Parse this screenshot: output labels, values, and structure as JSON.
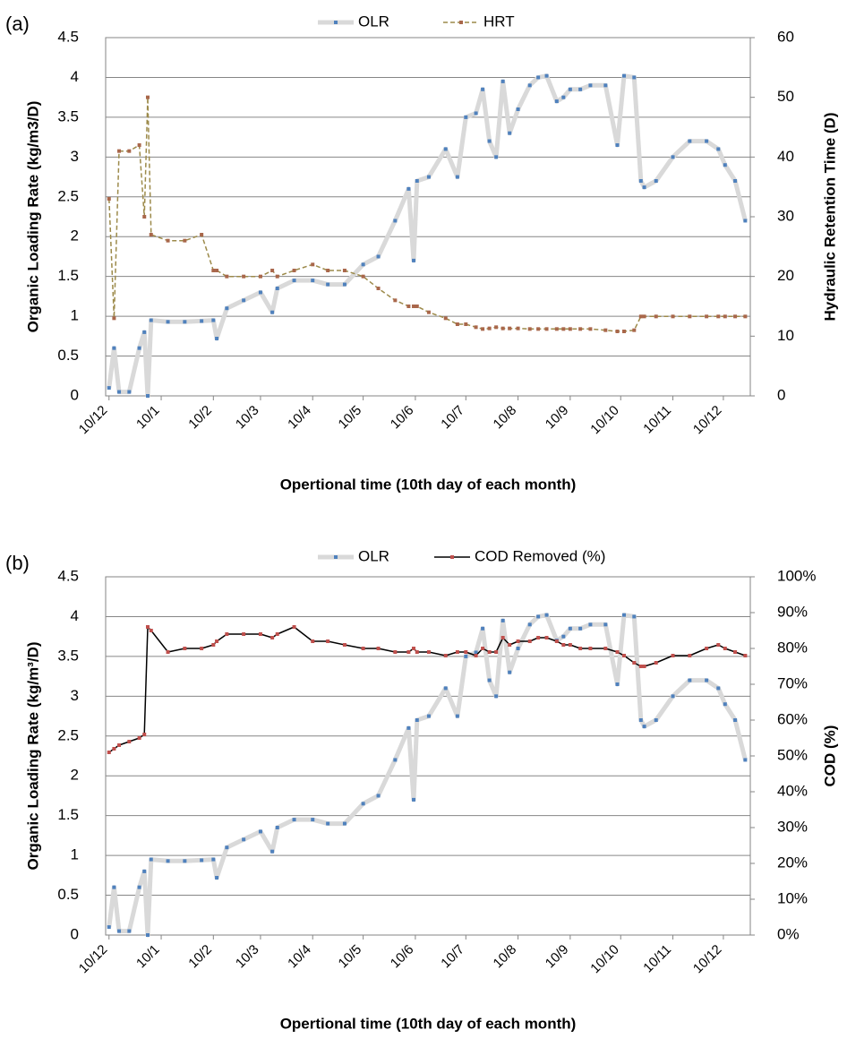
{
  "chart_data": [
    {
      "type": "line",
      "panel_label": "(a)",
      "x_label": "Opertional time (10th day of each month)",
      "y_label": "Organic Loading Rate (kg/m3/D)",
      "y2_label": "Hydraulic Retention Time   (D)",
      "x": [
        0,
        3,
        6,
        12,
        18,
        21,
        23,
        25,
        35,
        45,
        55,
        62,
        64,
        70,
        80,
        90,
        97,
        100,
        110,
        121,
        130,
        140,
        151,
        160,
        170,
        178,
        181,
        183,
        190,
        200,
        207,
        212,
        218,
        222,
        226,
        230,
        234,
        238,
        243,
        250,
        255,
        260,
        266,
        270,
        274,
        280,
        286,
        295,
        302,
        306,
        312,
        316,
        318,
        325,
        335,
        345,
        355,
        362,
        366,
        372,
        378
      ],
      "xlim": [
        -2,
        381
      ],
      "xticks": [
        {
          "value": 0,
          "label": "10/12"
        },
        {
          "value": 31,
          "label": "10/1"
        },
        {
          "value": 62,
          "label": "10/2"
        },
        {
          "value": 90,
          "label": "10/3"
        },
        {
          "value": 121,
          "label": "10/4"
        },
        {
          "value": 151,
          "label": "10/5"
        },
        {
          "value": 182,
          "label": "10/6"
        },
        {
          "value": 212,
          "label": "10/7"
        },
        {
          "value": 243,
          "label": "10/8"
        },
        {
          "value": 274,
          "label": "10/9"
        },
        {
          "value": 304,
          "label": "10/10"
        },
        {
          "value": 335,
          "label": "10/11"
        },
        {
          "value": 365,
          "label": "10/12"
        }
      ],
      "ylim": [
        0,
        4.5
      ],
      "yticks": [
        0,
        0.5,
        1,
        1.5,
        2,
        2.5,
        3,
        3.5,
        4,
        4.5
      ],
      "y2lim": [
        0,
        60
      ],
      "y2ticks": [
        0,
        10,
        20,
        30,
        40,
        50,
        60
      ],
      "grid": true,
      "series": [
        {
          "name": "OLR",
          "color": "#4f81bd",
          "line_color": "#d9d9d9",
          "dashed": false,
          "values": [
            0.1,
            0.6,
            0.05,
            0.05,
            0.6,
            0.8,
            0.0,
            0.95,
            0.93,
            0.93,
            0.94,
            0.95,
            0.72,
            1.1,
            1.2,
            1.3,
            1.05,
            1.35,
            1.45,
            1.45,
            1.4,
            1.4,
            1.65,
            1.75,
            2.2,
            2.6,
            1.7,
            2.7,
            2.75,
            3.1,
            2.75,
            3.5,
            3.55,
            3.85,
            3.2,
            3.0,
            3.95,
            3.3,
            3.6,
            3.9,
            4.0,
            4.02,
            3.7,
            3.75,
            3.85,
            3.85,
            3.9,
            3.9,
            3.15,
            4.02,
            4.0,
            2.7,
            2.62,
            2.7,
            3.0,
            3.2,
            3.2,
            3.1,
            2.9,
            2.7,
            2.2
          ]
        },
        {
          "name": "HRT",
          "color": "#a9674b",
          "line_color": "#9c8a4a",
          "dashed": true,
          "axis": "y2",
          "values": [
            33,
            13,
            41,
            41,
            42,
            30,
            50,
            27,
            26,
            26,
            27,
            21,
            21,
            20,
            20,
            20,
            21,
            20,
            21,
            22,
            21,
            21,
            20,
            18,
            16,
            15,
            15,
            15,
            14,
            13,
            12,
            12,
            11.5,
            11.2,
            11.3,
            11.5,
            11.3,
            11.3,
            11.3,
            11.2,
            11.2,
            11.2,
            11.2,
            11.2,
            11.2,
            11.2,
            11.2,
            11,
            10.8,
            10.8,
            11,
            13.3,
            13.3,
            13.3,
            13.3,
            13.3,
            13.3,
            13.3,
            13.3,
            13.3,
            13.3
          ]
        }
      ]
    },
    {
      "type": "line",
      "panel_label": "(b)",
      "x_label": "Opertional time (10th day of each month)",
      "y_label": "Organic Loading Rate (kg/m³/D)",
      "y2_label": "COD   (%)",
      "x": [
        0,
        3,
        6,
        12,
        18,
        21,
        23,
        25,
        35,
        45,
        55,
        62,
        64,
        70,
        80,
        90,
        97,
        100,
        110,
        121,
        130,
        140,
        151,
        160,
        170,
        178,
        181,
        183,
        190,
        200,
        207,
        212,
        218,
        222,
        226,
        230,
        234,
        238,
        243,
        250,
        255,
        260,
        266,
        270,
        274,
        280,
        286,
        295,
        302,
        306,
        312,
        316,
        318,
        325,
        335,
        345,
        355,
        362,
        366,
        372,
        378
      ],
      "xlim": [
        -2,
        381
      ],
      "xticks": [
        {
          "value": 0,
          "label": "10/12"
        },
        {
          "value": 31,
          "label": "10/1"
        },
        {
          "value": 62,
          "label": "10/2"
        },
        {
          "value": 90,
          "label": "10/3"
        },
        {
          "value": 121,
          "label": "10/4"
        },
        {
          "value": 151,
          "label": "10/5"
        },
        {
          "value": 182,
          "label": "10/6"
        },
        {
          "value": 212,
          "label": "10/7"
        },
        {
          "value": 243,
          "label": "10/8"
        },
        {
          "value": 274,
          "label": "10/9"
        },
        {
          "value": 304,
          "label": "10/10"
        },
        {
          "value": 335,
          "label": "10/11"
        },
        {
          "value": 365,
          "label": "10/12"
        }
      ],
      "ylim": [
        0,
        4.5
      ],
      "yticks": [
        0,
        0.5,
        1,
        1.5,
        2,
        2.5,
        3,
        3.5,
        4,
        4.5
      ],
      "y2lim": [
        0,
        100
      ],
      "y2ticks": [
        {
          "value": 0,
          "label": "0%"
        },
        {
          "value": 10,
          "label": "10%"
        },
        {
          "value": 20,
          "label": "20%"
        },
        {
          "value": 30,
          "label": "30%"
        },
        {
          "value": 40,
          "label": "40%"
        },
        {
          "value": 50,
          "label": "50%"
        },
        {
          "value": 60,
          "label": "60%"
        },
        {
          "value": 70,
          "label": "70%"
        },
        {
          "value": 80,
          "label": "80%"
        },
        {
          "value": 90,
          "label": "90%"
        },
        {
          "value": 100,
          "label": "100%"
        }
      ],
      "grid": true,
      "series": [
        {
          "name": "OLR",
          "color": "#4f81bd",
          "line_color": "#d9d9d9",
          "dashed": false,
          "values": [
            0.1,
            0.6,
            0.05,
            0.05,
            0.6,
            0.8,
            0.0,
            0.95,
            0.93,
            0.93,
            0.94,
            0.95,
            0.72,
            1.1,
            1.2,
            1.3,
            1.05,
            1.35,
            1.45,
            1.45,
            1.4,
            1.4,
            1.65,
            1.75,
            2.2,
            2.6,
            1.7,
            2.7,
            2.75,
            3.1,
            2.75,
            3.5,
            3.55,
            3.85,
            3.2,
            3.0,
            3.95,
            3.3,
            3.6,
            3.9,
            4.0,
            4.02,
            3.7,
            3.75,
            3.85,
            3.85,
            3.9,
            3.9,
            3.15,
            4.02,
            4.0,
            2.7,
            2.62,
            2.7,
            3.0,
            3.2,
            3.2,
            3.1,
            2.9,
            2.7,
            2.2
          ]
        },
        {
          "name": "COD Removed (%)",
          "color": "#c0504d",
          "line_color": "#000000",
          "dashed": false,
          "axis": "y2",
          "values": [
            51,
            52,
            53,
            54,
            55,
            56,
            86,
            85,
            79,
            80,
            80,
            81,
            82,
            84,
            84,
            84,
            83,
            84,
            86,
            82,
            82,
            81,
            80,
            80,
            79,
            79,
            80,
            79,
            79,
            78,
            79,
            79,
            78,
            80,
            79,
            79,
            83,
            81,
            82,
            82,
            83,
            83,
            82,
            81,
            81,
            80,
            80,
            80,
            79,
            78,
            76,
            75,
            75,
            76,
            78,
            78,
            80,
            81,
            80,
            79,
            78
          ]
        }
      ]
    }
  ]
}
